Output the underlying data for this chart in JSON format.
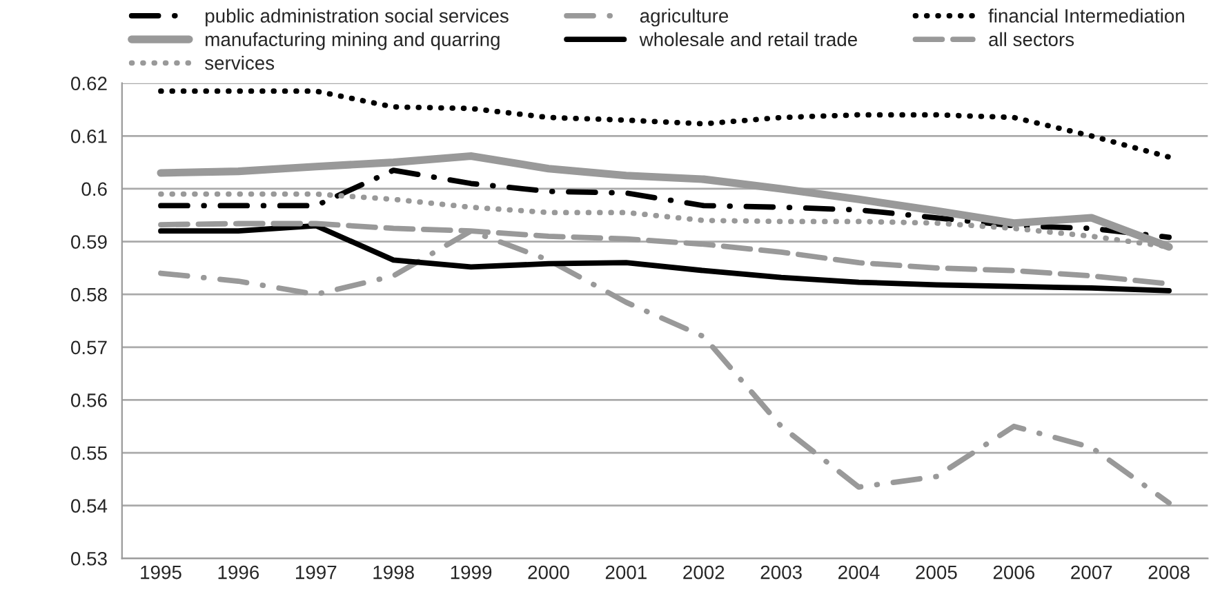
{
  "chart_data": {
    "type": "line",
    "categories": [
      "1995",
      "1996",
      "1997",
      "1998",
      "1999",
      "2000",
      "2001",
      "2002",
      "2003",
      "2004",
      "2005",
      "2006",
      "2007",
      "2008"
    ],
    "series": [
      {
        "name": "public administration social services",
        "color": "#000000",
        "line_style": "dashdot",
        "values": [
          0.5968,
          0.5968,
          0.5968,
          0.6035,
          0.601,
          0.5995,
          0.5992,
          0.5968,
          0.5965,
          0.596,
          0.5945,
          0.593,
          0.5925,
          0.5908
        ]
      },
      {
        "name": "agriculture",
        "color": "#999999",
        "line_style": "dashdot",
        "values": [
          0.584,
          0.5825,
          0.58,
          0.5835,
          0.592,
          0.5865,
          0.5785,
          0.572,
          0.555,
          0.5435,
          0.5455,
          0.555,
          0.551,
          0.5405
        ]
      },
      {
        "name": "financial Intermediation",
        "color": "#000000",
        "line_style": "dotted",
        "values": [
          0.6185,
          0.6185,
          0.6185,
          0.6155,
          0.6152,
          0.6135,
          0.613,
          0.6123,
          0.6135,
          0.614,
          0.614,
          0.6135,
          0.61,
          0.606
        ]
      },
      {
        "name": "manufacturing mining and quarring",
        "color": "#999999",
        "line_style": "solid",
        "values": [
          0.603,
          0.6033,
          0.6042,
          0.605,
          0.6062,
          0.6038,
          0.6025,
          0.6018,
          0.6,
          0.598,
          0.5958,
          0.5935,
          0.5945,
          0.589
        ]
      },
      {
        "name": "wholesale and retail trade",
        "color": "#000000",
        "line_style": "solid",
        "values": [
          0.592,
          0.592,
          0.593,
          0.5865,
          0.5852,
          0.5858,
          0.586,
          0.5845,
          0.5832,
          0.5823,
          0.5818,
          0.5815,
          0.5812,
          0.5807
        ]
      },
      {
        "name": "all sectors",
        "color": "#999999",
        "line_style": "dashed",
        "values": [
          0.5932,
          0.5934,
          0.5934,
          0.5925,
          0.592,
          0.591,
          0.5905,
          0.5895,
          0.588,
          0.586,
          0.585,
          0.5845,
          0.5835,
          0.582
        ]
      },
      {
        "name": "services",
        "color": "#999999",
        "line_style": "dotted",
        "values": [
          0.599,
          0.599,
          0.599,
          0.598,
          0.5965,
          0.5955,
          0.5955,
          0.594,
          0.5938,
          0.5938,
          0.5935,
          0.5925,
          0.591,
          0.589
        ]
      }
    ],
    "ylim": [
      0.53,
      0.62
    ],
    "yticks": [
      {
        "value": 0.53,
        "label": "0.53"
      },
      {
        "value": 0.54,
        "label": "0.54"
      },
      {
        "value": 0.55,
        "label": "0.55"
      },
      {
        "value": 0.56,
        "label": "0.56"
      },
      {
        "value": 0.57,
        "label": "0.57"
      },
      {
        "value": 0.58,
        "label": "0.58"
      },
      {
        "value": 0.59,
        "label": "0.59"
      },
      {
        "value": 0.6,
        "label": "0.6"
      },
      {
        "value": 0.61,
        "label": "0.61"
      },
      {
        "value": 0.62,
        "label": "0.62"
      }
    ],
    "grid": "y",
    "legend": "top",
    "marker": "none"
  }
}
